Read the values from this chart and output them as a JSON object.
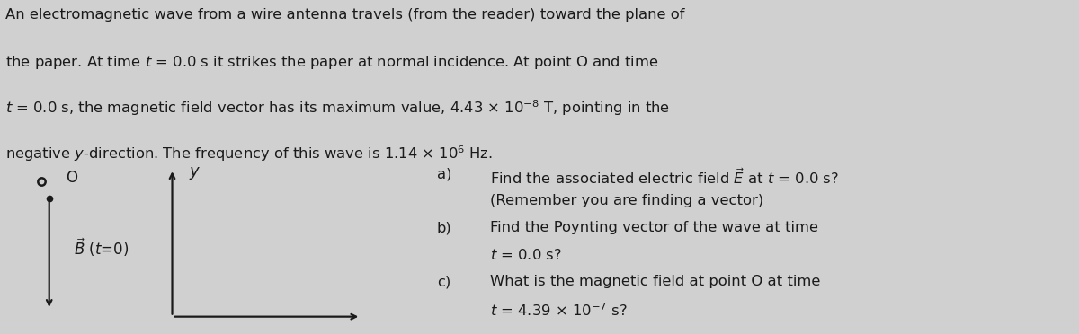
{
  "bg_color": "#d0d0d0",
  "text_color": "#1a1a1a",
  "para_lines": [
    "An electromagnetic wave from a wire antenna travels (from the reader) toward the plane of",
    "the paper. At time $t$ = 0.0 s it strikes the paper at normal incidence. At point O and time",
    "$t$ = 0.0 s, the magnetic field vector has its maximum value, 4.43 $\\times$ 10$^{-8}$ T, pointing in the",
    "negative $y$-direction. The frequency of this wave is 1.14 $\\times$ 10$^{6}$ Hz."
  ],
  "qa_lines": [
    [
      "a)",
      "Find the associated electric field $\\vec{E}$ at $t$ = 0.0 s?",
      true
    ],
    [
      "",
      "(Remember you are finding a vector)",
      false
    ],
    [
      "b)",
      "Find the Poynting vector of the wave at time",
      true
    ],
    [
      "",
      "$t$ = 0.0 s?",
      false
    ],
    [
      "c)",
      "What is the magnetic field at point O at time",
      true
    ],
    [
      "",
      "$t$ = 4.39 $\\times$ 10$^{-7}$ s?",
      false
    ]
  ],
  "font_size_para": 11.8,
  "font_size_qa": 11.8,
  "font_size_diagram": 12.0
}
